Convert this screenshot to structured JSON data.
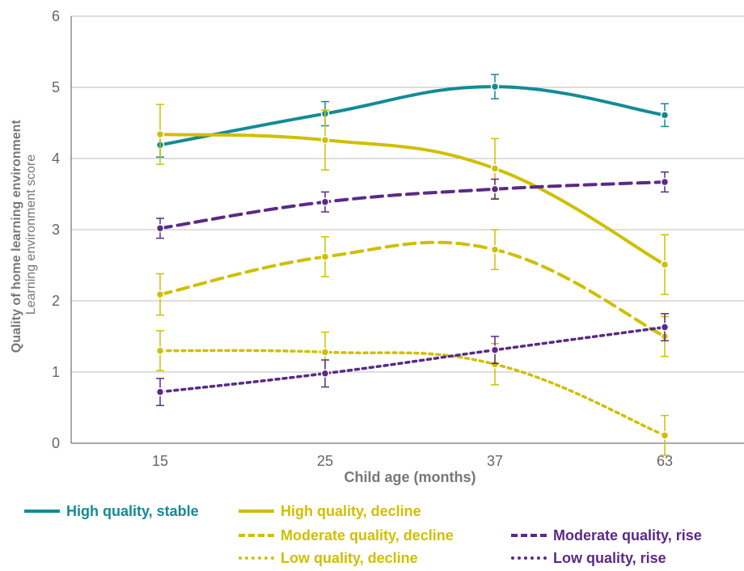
{
  "chart_data": {
    "type": "line",
    "ylabel_bold": "Quality of home learning environment",
    "ylabel": "Learning environment score",
    "xlabel": "Child age (months)",
    "categories": [
      "15",
      "25",
      "37",
      "63"
    ],
    "ylim": [
      0,
      6
    ],
    "yticks": [
      "0",
      "1",
      "2",
      "3",
      "4",
      "5",
      "6"
    ],
    "grid": "horizontal",
    "legend_position": "bottom",
    "series": [
      {
        "name": "High quality, stable",
        "color": "#138b96",
        "dash": "solid",
        "values": [
          4.19,
          4.63,
          5.01,
          4.61
        ],
        "err": [
          0.17,
          0.17,
          0.17,
          0.16
        ]
      },
      {
        "name": "High quality, decline",
        "color": "#d0bf00",
        "dash": "solid",
        "values": [
          4.34,
          4.26,
          3.86,
          2.51
        ],
        "err": [
          0.42,
          0.42,
          0.42,
          0.42
        ]
      },
      {
        "name": "Moderate quality, decline",
        "color": "#d0bf00",
        "dash": "dashed",
        "values": [
          2.09,
          2.62,
          2.72,
          1.5
        ],
        "err": [
          0.29,
          0.28,
          0.28,
          0.28
        ]
      },
      {
        "name": "Moderate quality, rise",
        "color": "#5a2a86",
        "dash": "dashed",
        "values": [
          3.02,
          3.39,
          3.57,
          3.67
        ],
        "err": [
          0.14,
          0.14,
          0.14,
          0.14
        ]
      },
      {
        "name": "Low quality, decline",
        "color": "#d0bf00",
        "dash": "dotted",
        "values": [
          1.3,
          1.28,
          1.11,
          0.11
        ],
        "err": [
          0.28,
          0.28,
          0.29,
          0.28
        ]
      },
      {
        "name": "Low quality, rise",
        "color": "#5a2a86",
        "dash": "dotted",
        "values": [
          0.72,
          0.98,
          1.31,
          1.63
        ],
        "err": [
          0.19,
          0.19,
          0.19,
          0.19
        ]
      }
    ]
  }
}
